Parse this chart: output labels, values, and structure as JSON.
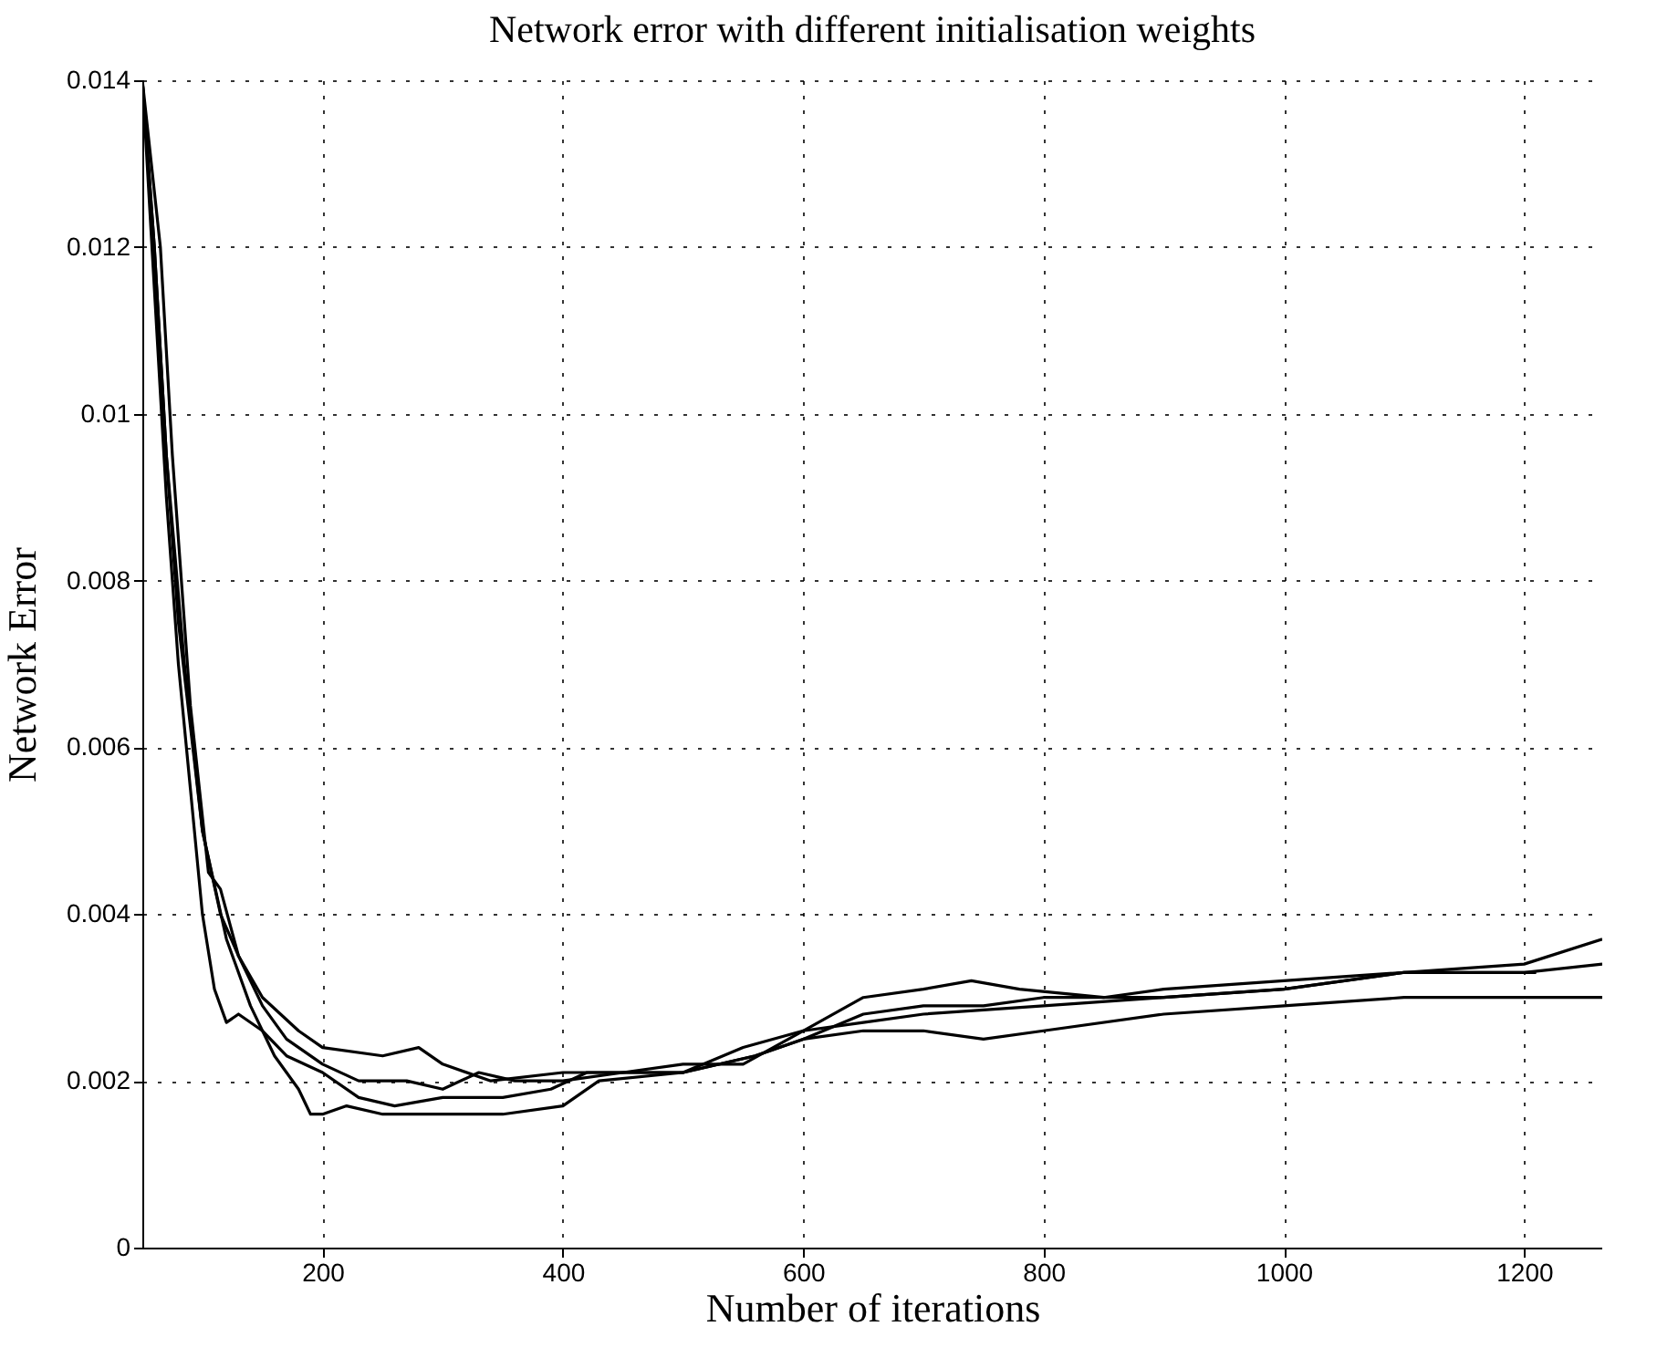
{
  "chart_data": {
    "type": "line",
    "title": "Network error with different initialisation weights",
    "xlabel": "Number of iterations",
    "ylabel": "Network Error",
    "xlim": [
      50,
      1265
    ],
    "xticks": [
      200,
      400,
      600,
      800,
      1000,
      1200
    ],
    "ylim": [
      0,
      0.014
    ],
    "yticks": [
      0,
      0.002,
      0.004,
      0.006,
      0.008,
      0.01,
      0.012,
      0.014
    ],
    "grid": true,
    "line_style": "solid",
    "marker": "none",
    "series": [
      {
        "color": "#000000",
        "x": [
          50,
          60,
          70,
          80,
          100,
          120,
          140,
          160,
          180,
          190,
          200,
          220,
          250,
          300,
          350,
          400,
          430,
          500,
          560,
          600,
          650,
          700,
          750,
          800,
          900,
          1000,
          1100,
          1200,
          1265
        ],
        "values": [
          0.014,
          0.012,
          0.0095,
          0.0075,
          0.005,
          0.0037,
          0.0029,
          0.0023,
          0.0019,
          0.0016,
          0.0016,
          0.0017,
          0.0016,
          0.0016,
          0.0016,
          0.0017,
          0.002,
          0.0021,
          0.0023,
          0.0025,
          0.0026,
          0.0026,
          0.0025,
          0.0026,
          0.0028,
          0.0029,
          0.003,
          0.003,
          0.003
        ]
      },
      {
        "color": "#000000",
        "x": [
          50,
          60,
          70,
          80,
          90,
          100,
          110,
          120,
          130,
          150,
          170,
          200,
          230,
          260,
          300,
          350,
          390,
          420,
          500,
          550,
          600,
          650,
          700,
          800,
          900,
          1000,
          1100,
          1200,
          1265
        ],
        "values": [
          0.014,
          0.0115,
          0.009,
          0.007,
          0.0055,
          0.004,
          0.0031,
          0.0027,
          0.0028,
          0.0026,
          0.0023,
          0.0021,
          0.0018,
          0.0017,
          0.0018,
          0.0018,
          0.0019,
          0.0021,
          0.0021,
          0.0024,
          0.0026,
          0.0027,
          0.0028,
          0.0029,
          0.003,
          0.0031,
          0.0033,
          0.0034,
          0.0037
        ]
      },
      {
        "color": "#000000",
        "x": [
          50,
          65,
          75,
          90,
          105,
          115,
          130,
          150,
          180,
          200,
          250,
          280,
          300,
          340,
          400,
          450,
          500,
          550,
          600,
          650,
          700,
          740,
          780,
          850,
          900,
          1000,
          1100,
          1150,
          1210
        ],
        "values": [
          0.014,
          0.012,
          0.0095,
          0.0065,
          0.0045,
          0.0043,
          0.0035,
          0.003,
          0.0026,
          0.0024,
          0.0023,
          0.0024,
          0.0022,
          0.002,
          0.0021,
          0.0021,
          0.0022,
          0.0022,
          0.0026,
          0.003,
          0.0031,
          0.0032,
          0.0031,
          0.003,
          0.0031,
          0.0032,
          0.0033,
          0.0033,
          0.0033
        ]
      },
      {
        "color": "#000000",
        "x": [
          50,
          60,
          70,
          85,
          100,
          115,
          130,
          150,
          170,
          200,
          230,
          270,
          300,
          330,
          360,
          400,
          450,
          500,
          560,
          600,
          650,
          700,
          750,
          800,
          900,
          1000,
          1100,
          1200,
          1265
        ],
        "values": [
          0.014,
          0.012,
          0.0095,
          0.007,
          0.005,
          0.004,
          0.0035,
          0.0029,
          0.0025,
          0.0022,
          0.002,
          0.002,
          0.0019,
          0.0021,
          0.002,
          0.002,
          0.0021,
          0.0021,
          0.0023,
          0.0025,
          0.0028,
          0.0029,
          0.0029,
          0.003,
          0.003,
          0.0031,
          0.0033,
          0.0033,
          0.0034
        ]
      }
    ]
  }
}
